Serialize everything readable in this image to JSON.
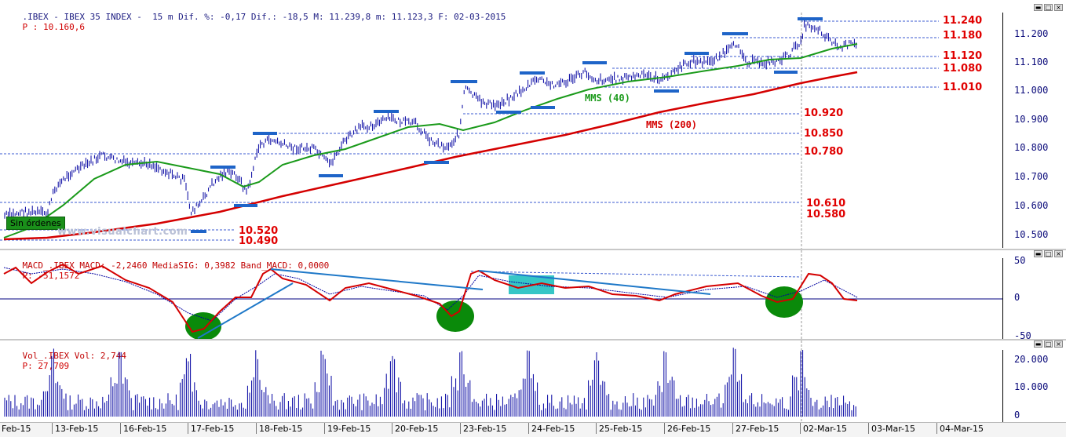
{
  "price_pane": {
    "header_main": ".IBEX - IBEX 35 INDEX -  15 m Dif. %: -0,17 Dif.: -18,5 M: 11.239,8 m: 11.123,3 F: 02-03-2015",
    "header_p": "P : 10.160,6",
    "y_ticks": [
      "11.200",
      "11.100",
      "11.000",
      "10.900",
      "10.800",
      "10.700",
      "10.600",
      "10.500"
    ],
    "levels": [
      "11.240",
      "11.180",
      "11.120",
      "11.080",
      "11.010",
      "10.920",
      "10.850",
      "10.780",
      "10.610",
      "10.580",
      "10.520",
      "10.490"
    ],
    "ma40_label": "MMS (40)",
    "ma200_label": "MMS (200)",
    "order_badge": "Sin órdenes",
    "watermark": "www.visualchart.com",
    "colors": {
      "bars": "#0000a0",
      "ma40": "#1a9a1a",
      "ma200": "#d40000",
      "support": "#1e64c8",
      "level": "#e00000"
    }
  },
  "macd_pane": {
    "header_main": "MACD_.IBEX MACD: -2,2460 MediaSIG: 0,3982 Band_MACD: 0,0000",
    "header_p": "P: -51,1572",
    "y_ticks": [
      "50",
      "0",
      "-50"
    ],
    "colors": {
      "macd": "#d40000",
      "signal": "#0000a0",
      "trend": "#1e78c8",
      "circle": "#0a8a0a",
      "box": "#36c6c6"
    }
  },
  "volume_pane": {
    "header_main": "Vol_.IBEX Vol: 2,744",
    "header_p": "P: 27,709",
    "y_ticks": [
      "20.000",
      "10.000",
      "0"
    ],
    "colors": {
      "bars": "#0000a0"
    }
  },
  "window_buttons": {
    "min": "▬",
    "max": "□",
    "close": "×"
  },
  "x_axis": {
    "dates": [
      "Feb-15",
      "13-Feb-15",
      "16-Feb-15",
      "17-Feb-15",
      "18-Feb-15",
      "19-Feb-15",
      "20-Feb-15",
      "23-Feb-15",
      "24-Feb-15",
      "25-Feb-15",
      "26-Feb-15",
      "27-Feb-15",
      "02-Mar-15",
      "03-Mar-15",
      "04-Mar-15"
    ]
  }
}
